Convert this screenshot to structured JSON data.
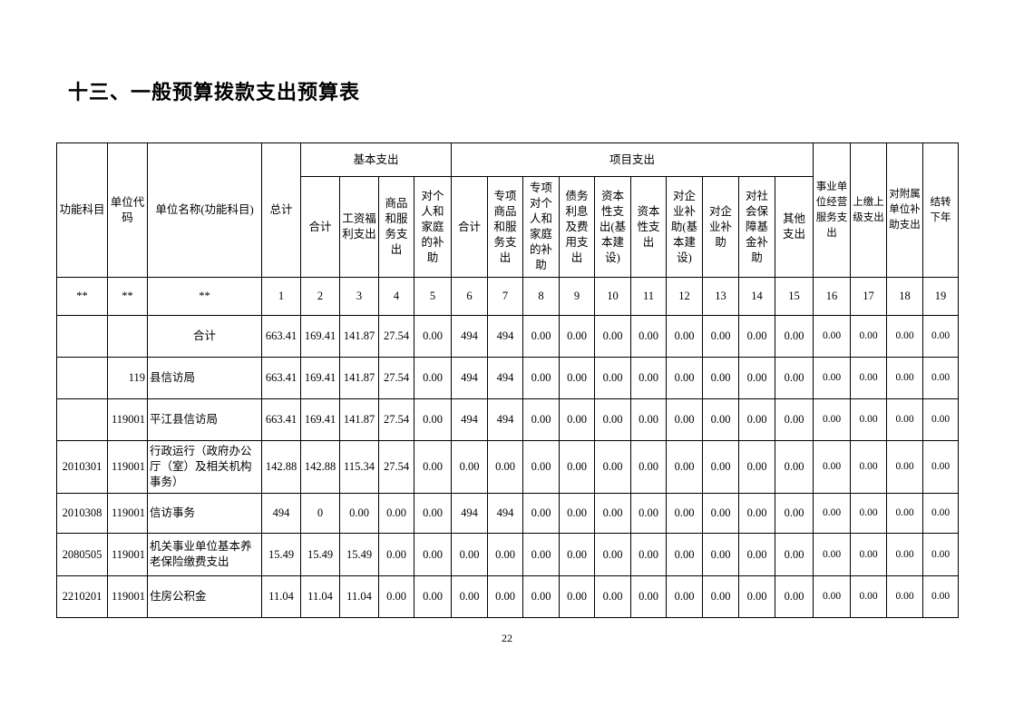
{
  "title": "十三、一般预算拨款支出预算表",
  "table": {
    "group_headers": [
      "基本支出",
      "项目支出"
    ],
    "headers": [
      "功能科目",
      "单位代码",
      "单位名称(功能科目)",
      "总计",
      "合计",
      "工资福利支出",
      "商品和服务支出",
      "对个人和家庭的补助",
      "合计",
      "专项商品和服务支出",
      "专项对个人和家庭的补助",
      "债务利息及费用支出",
      "资本性支出(基本建设)",
      "资本性支出",
      "对企业补助(基本建设)",
      "对企业补助",
      "对社会保障基金补助",
      "其他支出",
      "事业单位经营服务支出",
      "上缴上级支出",
      "对附属单位补助支出",
      "结转下年"
    ],
    "index_row": [
      "**",
      "**",
      "**",
      "1",
      "2",
      "3",
      "4",
      "5",
      "6",
      "7",
      "8",
      "9",
      "10",
      "11",
      "12",
      "13",
      "14",
      "15",
      "16",
      "17",
      "18",
      "19"
    ],
    "rows": [
      [
        null,
        null,
        "合计",
        "663.41",
        "169.41",
        "141.87",
        "27.54",
        "0.00",
        "494",
        "494",
        "0.00",
        "0.00",
        "0.00",
        "0.00",
        "0.00",
        "0.00",
        "0.00",
        "0.00",
        "0.00",
        "0.00",
        "0.00",
        "0.00"
      ],
      [
        null,
        "119",
        "县信访局",
        "663.41",
        "169.41",
        "141.87",
        "27.54",
        "0.00",
        "494",
        "494",
        "0.00",
        "0.00",
        "0.00",
        "0.00",
        "0.00",
        "0.00",
        "0.00",
        "0.00",
        "0.00",
        "0.00",
        "0.00",
        "0.00"
      ],
      [
        null,
        "119001",
        "平江县信访局",
        "663.41",
        "169.41",
        "141.87",
        "27.54",
        "0.00",
        "494",
        "494",
        "0.00",
        "0.00",
        "0.00",
        "0.00",
        "0.00",
        "0.00",
        "0.00",
        "0.00",
        "0.00",
        "0.00",
        "0.00",
        "0.00"
      ],
      [
        "2010301",
        "119001",
        "行政运行（政府办公厅（室）及相关机构事务）",
        "142.88",
        "142.88",
        "115.34",
        "27.54",
        "0.00",
        "0.00",
        "0.00",
        "0.00",
        "0.00",
        "0.00",
        "0.00",
        "0.00",
        "0.00",
        "0.00",
        "0.00",
        "0.00",
        "0.00",
        "0.00",
        "0.00"
      ],
      [
        "2010308",
        "119001",
        "信访事务",
        "494",
        "0",
        "0.00",
        "0.00",
        "0.00",
        "494",
        "494",
        "0.00",
        "0.00",
        "0.00",
        "0.00",
        "0.00",
        "0.00",
        "0.00",
        "0.00",
        "0.00",
        "0.00",
        "0.00",
        "0.00"
      ],
      [
        "2080505",
        "119001",
        "机关事业单位基本养老保险缴费支出",
        "15.49",
        "15.49",
        "15.49",
        "0.00",
        "0.00",
        "0.00",
        "0.00",
        "0.00",
        "0.00",
        "0.00",
        "0.00",
        "0.00",
        "0.00",
        "0.00",
        "0.00",
        "0.00",
        "0.00",
        "0.00",
        "0.00"
      ],
      [
        "2210201",
        "119001",
        "住房公积金",
        "11.04",
        "11.04",
        "11.04",
        "0.00",
        "0.00",
        "0.00",
        "0.00",
        "0.00",
        "0.00",
        "0.00",
        "0.00",
        "0.00",
        "0.00",
        "0.00",
        "0.00",
        "0.00",
        "0.00",
        "0.00",
        "0.00"
      ]
    ]
  },
  "page_number": "22"
}
